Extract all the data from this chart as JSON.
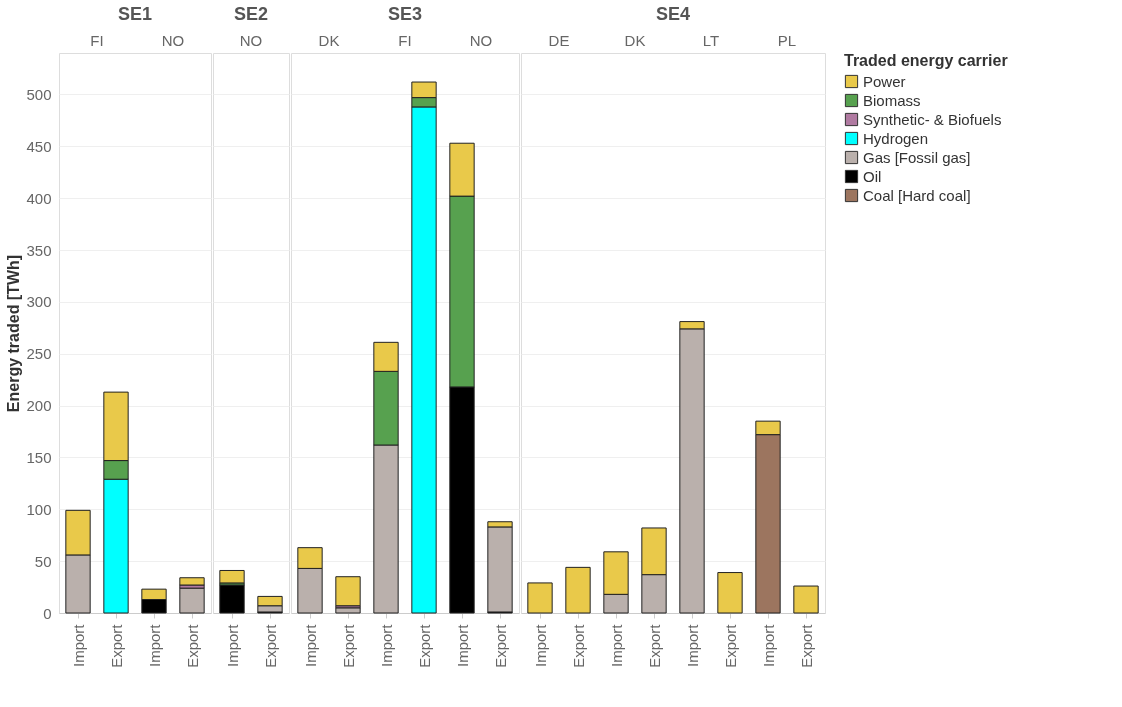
{
  "chart_data": [
    {
      "type": "bar",
      "stacked": true,
      "title": "SE1",
      "annotations": [
        "FI",
        "NO"
      ],
      "ylabel": "Energy traded [TWh]",
      "categories": [
        "Import",
        "Export",
        "Import",
        "Export"
      ],
      "ylim": [
        0,
        540
      ],
      "yticks": [
        0,
        50,
        100,
        150,
        200,
        250,
        300,
        350,
        400,
        450,
        500
      ],
      "grid": "y",
      "legend": "right",
      "legend_title": "Traded energy carrier",
      "series": [
        {
          "name": "Oil",
          "color": "#000000",
          "values": [
            null,
            null,
            13,
            null
          ]
        },
        {
          "name": "Gas [Fossil gas]",
          "color": "#bab0ac",
          "values": [
            56,
            null,
            null,
            24
          ]
        },
        {
          "name": "Hydrogen",
          "color": "#00ffff",
          "values": [
            null,
            129,
            null,
            null
          ]
        },
        {
          "name": "Synthetic- & Biofuels",
          "color": "#b07aa1",
          "values": [
            null,
            null,
            null,
            3
          ]
        },
        {
          "name": "Biomass",
          "color": "#57a14f",
          "values": [
            null,
            18,
            null,
            null
          ]
        },
        {
          "name": "Power",
          "color": "#e9c94a",
          "values": [
            43,
            66,
            10,
            7
          ]
        }
      ]
    },
    {
      "type": "bar",
      "stacked": true,
      "title": "SE2",
      "annotations": [
        "NO"
      ],
      "categories": [
        "Import",
        "Export"
      ],
      "ylim": [
        0,
        540
      ],
      "yticks": [
        0,
        50,
        100,
        150,
        200,
        250,
        300,
        350,
        400,
        450,
        500
      ],
      "grid": "y",
      "tick_labels": "x",
      "legend": "right",
      "series": [
        {
          "name": "Oil",
          "color": "#000000",
          "values": [
            27,
            1
          ]
        },
        {
          "name": "Gas [Fossil gas]",
          "color": "#bab0ac",
          "values": [
            null,
            6
          ]
        },
        {
          "name": "Biomass",
          "color": "#57a14f",
          "values": [
            2,
            null
          ]
        },
        {
          "name": "Power",
          "color": "#e9c94a",
          "values": [
            12,
            9
          ]
        }
      ]
    },
    {
      "type": "bar",
      "stacked": true,
      "title": "SE3",
      "annotations": [
        "DK",
        "FI",
        "NO"
      ],
      "categories": [
        "Import",
        "Export",
        "Import",
        "Export",
        "Import",
        "Export"
      ],
      "ylim": [
        0,
        540
      ],
      "yticks": [
        0,
        50,
        100,
        150,
        200,
        250,
        300,
        350,
        400,
        450,
        500
      ],
      "grid": "y",
      "tick_labels": "x",
      "legend": "right",
      "series": [
        {
          "name": "Oil",
          "color": "#000000",
          "values": [
            null,
            null,
            null,
            null,
            218,
            1
          ]
        },
        {
          "name": "Gas [Fossil gas]",
          "color": "#bab0ac",
          "values": [
            43,
            5,
            162,
            null,
            null,
            82
          ]
        },
        {
          "name": "Hydrogen",
          "color": "#00ffff",
          "values": [
            null,
            null,
            null,
            488,
            null,
            null
          ]
        },
        {
          "name": "Synthetic- & Biofuels",
          "color": "#b07aa1",
          "values": [
            null,
            2,
            null,
            null,
            null,
            null
          ]
        },
        {
          "name": "Biomass",
          "color": "#57a14f",
          "values": [
            null,
            null,
            71,
            9,
            184,
            null
          ]
        },
        {
          "name": "Power",
          "color": "#e9c94a",
          "values": [
            20,
            28,
            28,
            15,
            51,
            5
          ]
        }
      ]
    },
    {
      "type": "bar",
      "stacked": true,
      "title": "SE4",
      "annotations": [
        "DE",
        "DK",
        "LT",
        "PL"
      ],
      "categories": [
        "Import",
        "Export",
        "Import",
        "Export",
        "Import",
        "Export",
        "Import",
        "Export"
      ],
      "ylim": [
        0,
        540
      ],
      "yticks": [
        0,
        50,
        100,
        150,
        200,
        250,
        300,
        350,
        400,
        450,
        500
      ],
      "grid": "y",
      "tick_labels": "x",
      "legend": "right",
      "series": [
        {
          "name": "Coal [Hard coal]",
          "color": "#9c755f",
          "values": [
            null,
            null,
            null,
            null,
            null,
            null,
            172,
            null
          ]
        },
        {
          "name": "Gas [Fossil gas]",
          "color": "#bab0ac",
          "values": [
            null,
            null,
            18,
            37,
            274,
            null,
            null,
            null
          ]
        },
        {
          "name": "Power",
          "color": "#e9c94a",
          "values": [
            29,
            44,
            41,
            45,
            7,
            39,
            13,
            26
          ]
        }
      ]
    }
  ]
}
